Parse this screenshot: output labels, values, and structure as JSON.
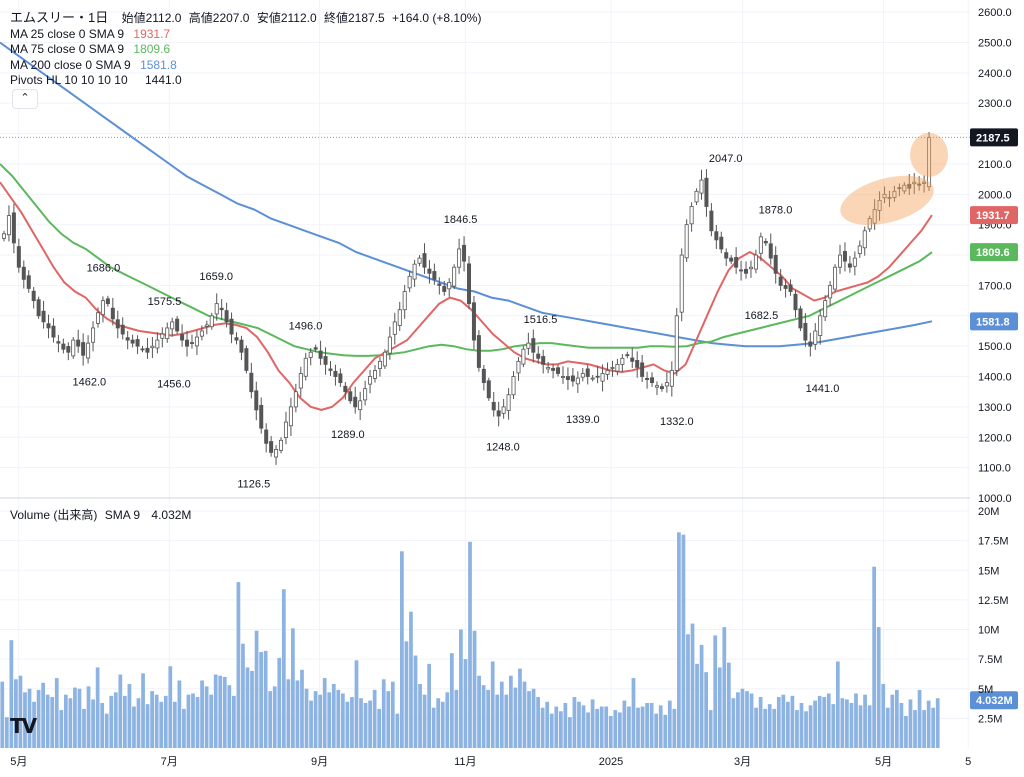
{
  "header": {
    "symbol": "エムスリー・1日",
    "open_label": "始値",
    "open": "2112.0",
    "high_label": "高値",
    "high": "2207.0",
    "low_label": "安値",
    "low": "2112.0",
    "close_label": "終値",
    "close": "2187.5",
    "change": "+164.0 (+8.10%)"
  },
  "indicators": [
    {
      "label": "MA 25 close 0 SMA 9",
      "value": "1931.7",
      "color": "#e06666"
    },
    {
      "label": "MA 75 close 0 SMA 9",
      "value": "1809.6",
      "color": "#5cb85c"
    },
    {
      "label": "MA 200 close 0 SMA 9",
      "value": "1581.8",
      "color": "#5b8fd6"
    },
    {
      "label": "Pivots HL 10 10 10 10",
      "value": "1441.0",
      "color": "#131722"
    }
  ],
  "collapse_icon": "chevron-up-icon",
  "volume_legend": {
    "label": "Volume (出来高)",
    "sma": "SMA 9",
    "value": "4.032M"
  },
  "logo": "TV",
  "chart_data": {
    "type": "candlestick",
    "price_axis": {
      "ticks": [
        "1000.0",
        "1100.0",
        "1200.0",
        "1300.0",
        "1400.0",
        "1500.0",
        "1600.0",
        "1700.0",
        "1800.0",
        "1900.0",
        "2000.0",
        "2100.0",
        "2200.0",
        "2300.0",
        "2400.0",
        "2500.0",
        "2600.0"
      ],
      "range": [
        1000,
        2640
      ]
    },
    "volume_axis": {
      "ticks": [
        "2.5M",
        "5M",
        "7.5M",
        "10M",
        "12.5M",
        "15M",
        "17.5M",
        "20M"
      ],
      "range": [
        0,
        20
      ]
    },
    "time_axis": {
      "labels": [
        "5月",
        "7月",
        "9月",
        "11月",
        "2025",
        "3月",
        "5月",
        "5"
      ],
      "positions": [
        0.02,
        0.18,
        0.34,
        0.495,
        0.65,
        0.79,
        0.94,
        1.03
      ]
    },
    "last_price": {
      "label": "2187.5",
      "value": 2187.5,
      "color": "#131722"
    },
    "ma_tags": [
      {
        "label": "1931.7",
        "value": 1931.7,
        "color": "#e06666"
      },
      {
        "label": "1809.6",
        "value": 1809.6,
        "color": "#5cb85c"
      },
      {
        "label": "1581.8",
        "value": 1581.8,
        "color": "#5b8fd6"
      }
    ],
    "volume_tag": {
      "label": "4.032M",
      "value": 4.032
    },
    "pivots": [
      {
        "label": "1686.0",
        "t": 0.11,
        "v": 1686,
        "pos": "above"
      },
      {
        "label": "1462.0",
        "t": 0.095,
        "v": 1462,
        "pos": "below"
      },
      {
        "label": "1575.5",
        "t": 0.175,
        "v": 1575.5,
        "pos": "above"
      },
      {
        "label": "1456.0",
        "t": 0.185,
        "v": 1456,
        "pos": "below"
      },
      {
        "label": "1659.0",
        "t": 0.23,
        "v": 1659,
        "pos": "above"
      },
      {
        "label": "1126.5",
        "t": 0.27,
        "v": 1126.5,
        "pos": "below"
      },
      {
        "label": "1496.0",
        "t": 0.325,
        "v": 1496,
        "pos": "above"
      },
      {
        "label": "1289.0",
        "t": 0.37,
        "v": 1289,
        "pos": "below"
      },
      {
        "label": "1846.5",
        "t": 0.49,
        "v": 1846.5,
        "pos": "above"
      },
      {
        "label": "1248.0",
        "t": 0.535,
        "v": 1248,
        "pos": "below"
      },
      {
        "label": "1516.5",
        "t": 0.575,
        "v": 1516.5,
        "pos": "above"
      },
      {
        "label": "1339.0",
        "t": 0.62,
        "v": 1339,
        "pos": "below"
      },
      {
        "label": "1332.0",
        "t": 0.72,
        "v": 1332,
        "pos": "below"
      },
      {
        "label": "2047.0",
        "t": 0.772,
        "v": 2047,
        "pos": "above"
      },
      {
        "label": "1878.0",
        "t": 0.825,
        "v": 1878,
        "pos": "above"
      },
      {
        "label": "1682.5",
        "t": 0.81,
        "v": 1682.5,
        "pos": "below"
      },
      {
        "label": "1441.0",
        "t": 0.875,
        "v": 1441,
        "pos": "below"
      }
    ],
    "closes": [
      1870,
      1930,
      1840,
      1760,
      1720,
      1690,
      1650,
      1600,
      1580,
      1560,
      1530,
      1510,
      1490,
      1480,
      1520,
      1500,
      1470,
      1510,
      1560,
      1610,
      1650,
      1640,
      1590,
      1560,
      1540,
      1520,
      1510,
      1500,
      1490,
      1480,
      1500,
      1520,
      1540,
      1560,
      1580,
      1550,
      1520,
      1500,
      1510,
      1530,
      1550,
      1570,
      1600,
      1640,
      1620,
      1580,
      1540,
      1520,
      1480,
      1420,
      1350,
      1290,
      1230,
      1180,
      1150,
      1160,
      1190,
      1250,
      1300,
      1350,
      1410,
      1460,
      1480,
      1490,
      1460,
      1440,
      1420,
      1400,
      1380,
      1350,
      1320,
      1300,
      1320,
      1360,
      1400,
      1420,
      1450,
      1480,
      1530,
      1580,
      1620,
      1680,
      1730,
      1770,
      1790,
      1760,
      1740,
      1720,
      1700,
      1680,
      1710,
      1760,
      1820,
      1780,
      1640,
      1520,
      1430,
      1380,
      1330,
      1290,
      1270,
      1300,
      1340,
      1400,
      1450,
      1490,
      1510,
      1480,
      1460,
      1440,
      1430,
      1420,
      1410,
      1400,
      1390,
      1385,
      1395,
      1410,
      1400,
      1395,
      1400,
      1410,
      1420,
      1430,
      1440,
      1460,
      1470,
      1450,
      1430,
      1400,
      1390,
      1380,
      1370,
      1360,
      1380,
      1420,
      1600,
      1800,
      1900,
      1960,
      2010,
      2047,
      1960,
      1880,
      1850,
      1820,
      1790,
      1780,
      1760,
      1750,
      1740,
      1760,
      1800,
      1860,
      1840,
      1790,
      1740,
      1700,
      1690,
      1680,
      1620,
      1560,
      1520,
      1500,
      1550,
      1600,
      1650,
      1700,
      1760,
      1800,
      1780,
      1760,
      1790,
      1830,
      1880,
      1920,
      1950,
      1980,
      2000,
      1990,
      2010,
      2020,
      2030,
      2020,
      2040,
      2030,
      2040,
      2187.5
    ],
    "ma25": [
      2040,
      1990,
      1940,
      1880,
      1820,
      1760,
      1710,
      1680,
      1660,
      1620,
      1590,
      1570,
      1560,
      1550,
      1545,
      1540,
      1535,
      1540,
      1550,
      1560,
      1570,
      1575,
      1570,
      1560,
      1530,
      1480,
      1420,
      1380,
      1330,
      1300,
      1290,
      1300,
      1330,
      1380,
      1420,
      1460,
      1480,
      1500,
      1520,
      1560,
      1600,
      1640,
      1660,
      1650,
      1620,
      1580,
      1540,
      1510,
      1480,
      1460,
      1450,
      1440,
      1440,
      1450,
      1445,
      1440,
      1430,
      1420,
      1415,
      1420,
      1430,
      1440,
      1420,
      1410,
      1440,
      1520,
      1600,
      1680,
      1750,
      1790,
      1810,
      1790,
      1760,
      1730,
      1690,
      1670,
      1650,
      1660,
      1680,
      1690,
      1700,
      1710,
      1730,
      1760,
      1800,
      1840,
      1880,
      1931.7
    ],
    "ma75": [
      2100,
      2060,
      2010,
      1960,
      1910,
      1870,
      1840,
      1820,
      1790,
      1760,
      1740,
      1720,
      1700,
      1680,
      1660,
      1640,
      1620,
      1600,
      1590,
      1580,
      1570,
      1560,
      1540,
      1520,
      1500,
      1490,
      1480,
      1475,
      1470,
      1468,
      1468,
      1470,
      1475,
      1480,
      1490,
      1500,
      1505,
      1500,
      1490,
      1485,
      1485,
      1490,
      1500,
      1505,
      1510,
      1510,
      1505,
      1500,
      1495,
      1495,
      1495,
      1495,
      1495,
      1500,
      1500,
      1498,
      1500,
      1510,
      1515,
      1530,
      1540,
      1550,
      1560,
      1570,
      1580,
      1590,
      1600,
      1620,
      1640,
      1660,
      1680,
      1700,
      1720,
      1740,
      1760,
      1780,
      1809.6
    ],
    "ma200": [
      2500,
      2460,
      2420,
      2380,
      2340,
      2300,
      2260,
      2220,
      2180,
      2140,
      2100,
      2060,
      2030,
      2000,
      1970,
      1950,
      1920,
      1900,
      1880,
      1860,
      1840,
      1810,
      1790,
      1770,
      1750,
      1730,
      1710,
      1690,
      1680,
      1660,
      1650,
      1630,
      1610,
      1600,
      1590,
      1580,
      1570,
      1560,
      1550,
      1540,
      1530,
      1520,
      1510,
      1505,
      1500,
      1500,
      1500,
      1505,
      1510,
      1520,
      1530,
      1540,
      1550,
      1560,
      1570,
      1581.8
    ],
    "volumes": [
      5.6,
      2.6,
      9.1,
      5.8,
      6.1,
      4.7,
      5.0,
      3.9,
      4.9,
      5.5,
      4.5,
      4.3,
      5.9,
      3.2,
      4.5,
      4.2,
      5.1,
      5.0,
      3.3,
      5.2,
      4.1,
      6.8,
      3.8,
      2.9,
      4.4,
      4.7,
      6.2,
      4.4,
      5.4,
      3.5,
      4.2,
      6.3,
      3.7,
      4.8,
      4.5,
      3.9,
      4.4,
      6.9,
      3.9,
      5.7,
      3.3,
      4.5,
      4.6,
      4.3,
      5.7,
      5.2,
      4.5,
      6.2,
      6.1,
      6.0,
      5.3,
      4.4,
      14.0,
      8.8,
      6.8,
      6.5,
      9.9,
      8.1,
      8.2,
      4.8,
      5.2,
      7.6,
      13.4,
      5.8,
      10.1,
      5.7,
      6.6,
      5.0,
      4.0,
      4.8,
      4.5,
      5.9,
      4.7,
      5.4,
      4.9,
      4.6,
      3.9,
      4.3,
      7.4,
      4.2,
      3.8,
      4.0,
      4.9,
      3.3,
      5.8,
      4.8,
      5.6,
      2.9,
      16.6,
      9.0,
      11.5,
      7.8,
      5.4,
      4.5,
      7.1,
      3.4,
      4.2,
      3.9,
      4.7,
      8.0,
      4.9,
      10.0,
      7.5,
      17.4,
      9.9,
      6.1,
      5.3,
      4.9,
      7.3,
      4.5,
      5.6,
      4.5,
      6.1,
      5.1,
      6.7,
      5.6,
      4.8,
      5.0,
      4.3,
      3.4,
      3.9,
      2.9,
      3.5,
      3.1,
      3.8,
      2.6,
      4.3,
      3.9,
      3.6,
      3.0,
      4.1,
      3.3,
      3.5,
      3.5,
      2.7,
      3.2,
      3.0,
      4.0,
      3.5,
      5.9,
      3.4,
      3.5,
      3.8,
      3.8,
      2.9,
      3.6,
      2.8,
      4.0,
      3.3,
      18.2,
      18.0,
      9.6,
      10.5,
      7.1,
      8.7,
      6.4,
      3.2,
      9.5,
      6.8,
      10.2,
      7.2,
      4.2,
      4.7,
      5.0,
      4.8,
      4.6,
      3.4,
      4.3,
      3.3,
      3.7,
      3.3,
      4.3,
      4.5,
      3.9,
      4.4,
      3.2,
      3.8,
      3.1,
      3.6,
      4.0,
      4.4,
      4.3,
      4.6,
      3.7,
      7.3,
      4.2,
      4.1,
      3.8,
      4.6,
      3.6,
      4.5,
      3.6,
      15.3,
      10.2,
      5.4,
      3.4,
      4.5,
      4.9,
      3.8,
      2.7,
      4.1,
      3.2,
      4.9,
      3.2,
      4.0,
      3.4,
      4.2
    ]
  }
}
